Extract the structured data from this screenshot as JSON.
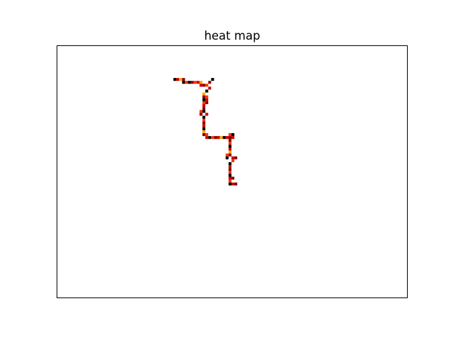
{
  "chart_data": {
    "type": "heatmap",
    "title": "heat map",
    "xlabel": "",
    "ylabel": "",
    "axes_ticks": false,
    "colormap": [
      "#000000",
      "#8b0000",
      "#cc0000",
      "#ff3300",
      "#ffa500",
      "#ffd700"
    ],
    "cells": [
      [
        40,
        11,
        0
      ],
      [
        41,
        11,
        2
      ],
      [
        42,
        11,
        4
      ],
      [
        43,
        11,
        1
      ],
      [
        43,
        12,
        0
      ],
      [
        44,
        12,
        3
      ],
      [
        45,
        12,
        0
      ],
      [
        46,
        12,
        1
      ],
      [
        47,
        12,
        3
      ],
      [
        48,
        12,
        2
      ],
      [
        49,
        12,
        4
      ],
      [
        49,
        13,
        2
      ],
      [
        50,
        13,
        1
      ],
      [
        51,
        13,
        3
      ],
      [
        52,
        12,
        1
      ],
      [
        53,
        11,
        0
      ],
      [
        52,
        14,
        2
      ],
      [
        51,
        15,
        0
      ],
      [
        50,
        16,
        4
      ],
      [
        50,
        17,
        1
      ],
      [
        51,
        17,
        3
      ],
      [
        50,
        18,
        0
      ],
      [
        51,
        18,
        2
      ],
      [
        50,
        19,
        3
      ],
      [
        51,
        19,
        1
      ],
      [
        50,
        20,
        2
      ],
      [
        50,
        21,
        1
      ],
      [
        49,
        22,
        3
      ],
      [
        50,
        22,
        0
      ],
      [
        49,
        23,
        1
      ],
      [
        51,
        23,
        2
      ],
      [
        50,
        24,
        0
      ],
      [
        50,
        25,
        3
      ],
      [
        50,
        26,
        1
      ],
      [
        50,
        27,
        2
      ],
      [
        50,
        28,
        0
      ],
      [
        50,
        29,
        4
      ],
      [
        50,
        30,
        1
      ],
      [
        51,
        30,
        3
      ],
      [
        51,
        31,
        2
      ],
      [
        52,
        31,
        0
      ],
      [
        53,
        31,
        3
      ],
      [
        54,
        31,
        1
      ],
      [
        55,
        31,
        2
      ],
      [
        56,
        31,
        4
      ],
      [
        57,
        31,
        0
      ],
      [
        58,
        31,
        2
      ],
      [
        59,
        31,
        1
      ],
      [
        59,
        30,
        3
      ],
      [
        60,
        30,
        0
      ],
      [
        60,
        31,
        2
      ],
      [
        59,
        32,
        1
      ],
      [
        59,
        33,
        3
      ],
      [
        59,
        34,
        0
      ],
      [
        59,
        35,
        2
      ],
      [
        59,
        36,
        4
      ],
      [
        59,
        37,
        1
      ],
      [
        58,
        37,
        3
      ],
      [
        58,
        38,
        0
      ],
      [
        60,
        38,
        2
      ],
      [
        61,
        38,
        1
      ],
      [
        60,
        39,
        3
      ],
      [
        59,
        40,
        0
      ],
      [
        59,
        41,
        2
      ],
      [
        59,
        42,
        1
      ],
      [
        59,
        43,
        3
      ],
      [
        59,
        44,
        0
      ],
      [
        59,
        45,
        2
      ],
      [
        60,
        45,
        1
      ],
      [
        59,
        46,
        3
      ],
      [
        59,
        47,
        0
      ],
      [
        60,
        47,
        2
      ],
      [
        61,
        47,
        1
      ]
    ]
  }
}
